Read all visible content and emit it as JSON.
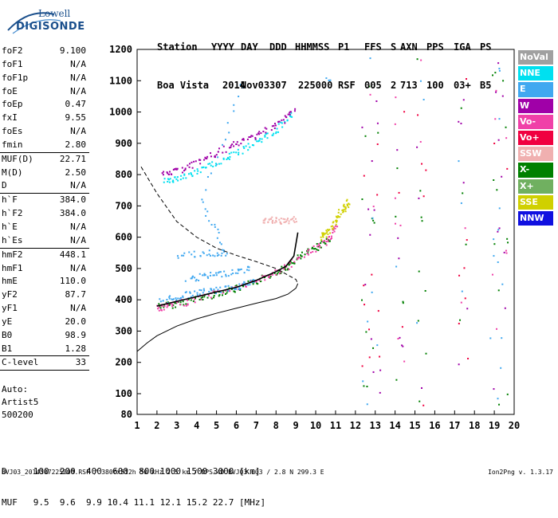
{
  "logo": {
    "line1": "Lowell",
    "line2": "DIGISONDE"
  },
  "header": {
    "labels": [
      "Station",
      "YYYY",
      "DAY",
      "DDD",
      "HHMMSS",
      "P1",
      "FFS",
      "S",
      "AXN",
      "PPS",
      "IGA",
      "PS"
    ],
    "values": [
      "Boa Vista",
      "2014",
      "Nov03",
      "307",
      "225000",
      "RSF",
      "005",
      "2",
      "713",
      "100",
      "03+",
      "B5"
    ]
  },
  "params": [
    {
      "k": "foF2",
      "v": "9.100"
    },
    {
      "k": "foF1",
      "v": "N/A"
    },
    {
      "k": "foF1p",
      "v": "N/A"
    },
    {
      "k": "foE",
      "v": "N/A"
    },
    {
      "k": "foEp",
      "v": "0.47"
    },
    {
      "k": "fxI",
      "v": "9.55"
    },
    {
      "k": "foEs",
      "v": "N/A"
    },
    {
      "k": "fmin",
      "v": "2.80"
    },
    {
      "k": "MUF(D)",
      "v": "22.71"
    },
    {
      "k": "M(D)",
      "v": "2.50"
    },
    {
      "k": "D",
      "v": "N/A"
    },
    {
      "k": "h`F",
      "v": "384.0"
    },
    {
      "k": "h`F2",
      "v": "384.0"
    },
    {
      "k": "h`E",
      "v": "N/A"
    },
    {
      "k": "h`Es",
      "v": "N/A"
    },
    {
      "k": "hmF2",
      "v": "448.1"
    },
    {
      "k": "hmF1",
      "v": "N/A"
    },
    {
      "k": "hmE",
      "v": "110.0"
    },
    {
      "k": "yF2",
      "v": "87.7"
    },
    {
      "k": "yF1",
      "v": "N/A"
    },
    {
      "k": "yE",
      "v": "20.0"
    },
    {
      "k": "B0",
      "v": "98.9"
    },
    {
      "k": "B1",
      "v": "1.28"
    },
    {
      "k": "C-level",
      "v": "33"
    }
  ],
  "auto": {
    "line1": "Auto:",
    "line2": "Artist5",
    "line3": "500200"
  },
  "legend": [
    {
      "name": "NoVal",
      "color": "#a0a0a0"
    },
    {
      "name": "NNE",
      "color": "#00e0f0"
    },
    {
      "name": "E",
      "color": "#40a8f0"
    },
    {
      "name": "W",
      "color": "#a000a8"
    },
    {
      "name": "Vo-",
      "color": "#f040a8"
    },
    {
      "name": "Vo+",
      "color": "#f00040"
    },
    {
      "name": "SSW",
      "color": "#f0b0b0"
    },
    {
      "name": "X-",
      "color": "#008000"
    },
    {
      "name": "X+",
      "color": "#70b060"
    },
    {
      "name": "SSE",
      "color": "#d0d000"
    },
    {
      "name": "NNW",
      "color": "#1010e0"
    }
  ],
  "dtable": {
    "row_d": "D     100  200  400  600  800 1000 1500 3000 [km]",
    "row_muf": "MUF   9.5  9.6  9.9 10.4 11.1 12.1 15.2 22.7 [MHz]"
  },
  "footer": {
    "left": "BVJ03_2014307225000.RSF / 380fx512h 50 kHz 2.5 km / DPS-4D BVJ03 003 / 2.8 N 299.3 E",
    "right": "Ion2Png v. 1.3.17"
  },
  "chart_data": {
    "type": "scatter",
    "title": "",
    "xlabel": "",
    "ylabel": "",
    "xlim": [
      1,
      20
    ],
    "ylim": [
      80,
      1200
    ],
    "x_ticks": [
      1,
      2,
      3,
      4,
      5,
      6,
      7,
      8,
      9,
      10,
      11,
      12,
      13,
      14,
      15,
      16,
      17,
      18,
      19,
      20
    ],
    "y_ticks": [
      80,
      100,
      200,
      300,
      400,
      500,
      600,
      700,
      800,
      900,
      1000,
      1100,
      1200
    ],
    "grid": false,
    "legend_position": "right",
    "series": [
      {
        "name": "X-",
        "points": [
          [
            2.1,
            384
          ],
          [
            2.8,
            386
          ],
          [
            4,
            405
          ],
          [
            5,
            422
          ],
          [
            6,
            437
          ],
          [
            7,
            460
          ],
          [
            8,
            492
          ],
          [
            8.6,
            510
          ],
          [
            9.2,
            540
          ],
          [
            10,
            570
          ],
          [
            10.6,
            595
          ]
        ]
      },
      {
        "name": "Vo-",
        "points": [
          [
            2,
            375
          ],
          [
            2.5,
            383
          ],
          [
            3.5,
            395
          ],
          [
            5,
            425
          ],
          [
            6.5,
            450
          ],
          [
            7.5,
            478
          ],
          [
            8.4,
            500
          ],
          [
            9.5,
            550
          ],
          [
            10.5,
            590
          ],
          [
            11,
            630
          ]
        ]
      },
      {
        "name": "E",
        "points": [
          [
            2.2,
            398
          ],
          [
            3,
            412
          ],
          [
            4,
            425
          ],
          [
            5,
            432
          ],
          [
            6,
            445
          ],
          [
            6.8,
            460
          ],
          [
            3.5,
            468
          ],
          [
            4.5,
            478
          ],
          [
            5.5,
            488
          ],
          [
            6.6,
            500
          ],
          [
            3,
            545
          ],
          [
            4.5,
            550
          ],
          [
            5.5,
            553
          ],
          [
            4.2,
            705
          ],
          [
            6.2,
            1080
          ],
          [
            10.6,
            1110
          ]
        ]
      },
      {
        "name": "NNE",
        "points": [
          [
            2.4,
            780
          ],
          [
            3,
            790
          ],
          [
            4,
            810
          ],
          [
            5,
            840
          ],
          [
            6,
            870
          ],
          [
            7,
            910
          ],
          [
            7.8,
            935
          ],
          [
            8.8,
            995
          ]
        ]
      },
      {
        "name": "W",
        "points": [
          [
            2.3,
            800
          ],
          [
            3,
            815
          ],
          [
            4,
            840
          ],
          [
            5,
            870
          ],
          [
            6,
            900
          ],
          [
            7,
            930
          ],
          [
            8,
            960
          ],
          [
            8.8,
            1005
          ]
        ]
      },
      {
        "name": "SSE",
        "points": [
          [
            10.2,
            600
          ],
          [
            10.6,
            620
          ],
          [
            11,
            650
          ],
          [
            11.3,
            690
          ],
          [
            11.6,
            712
          ]
        ]
      },
      {
        "name": "SSW",
        "points": [
          [
            7.3,
            654
          ],
          [
            7.8,
            658
          ],
          [
            8.3,
            650
          ],
          [
            8.9,
            660
          ]
        ]
      }
    ],
    "lines": [
      {
        "name": "virtual trace",
        "points": [
          [
            2,
            380
          ],
          [
            3,
            395
          ],
          [
            4,
            410
          ],
          [
            5,
            425
          ],
          [
            6,
            440
          ],
          [
            7,
            462
          ],
          [
            8,
            490
          ],
          [
            8.5,
            507
          ],
          [
            8.9,
            540
          ],
          [
            9.1,
            615
          ]
        ]
      },
      {
        "name": "true height profile",
        "points": [
          [
            1,
            235
          ],
          [
            1.5,
            262
          ],
          [
            2,
            285
          ],
          [
            3,
            316
          ],
          [
            4,
            339
          ],
          [
            5,
            357
          ],
          [
            6,
            373
          ],
          [
            7,
            389
          ],
          [
            8,
            404
          ],
          [
            8.6,
            418
          ],
          [
            9,
            437
          ],
          [
            9.1,
            452
          ]
        ]
      },
      {
        "name": "model profile",
        "points": [
          [
            1.2,
            825
          ],
          [
            2,
            740
          ],
          [
            3,
            650
          ],
          [
            4,
            600
          ],
          [
            5,
            565
          ],
          [
            6,
            542
          ],
          [
            7,
            522
          ],
          [
            8,
            500
          ],
          [
            9,
            465
          ],
          [
            9.1,
            452
          ]
        ]
      }
    ]
  }
}
